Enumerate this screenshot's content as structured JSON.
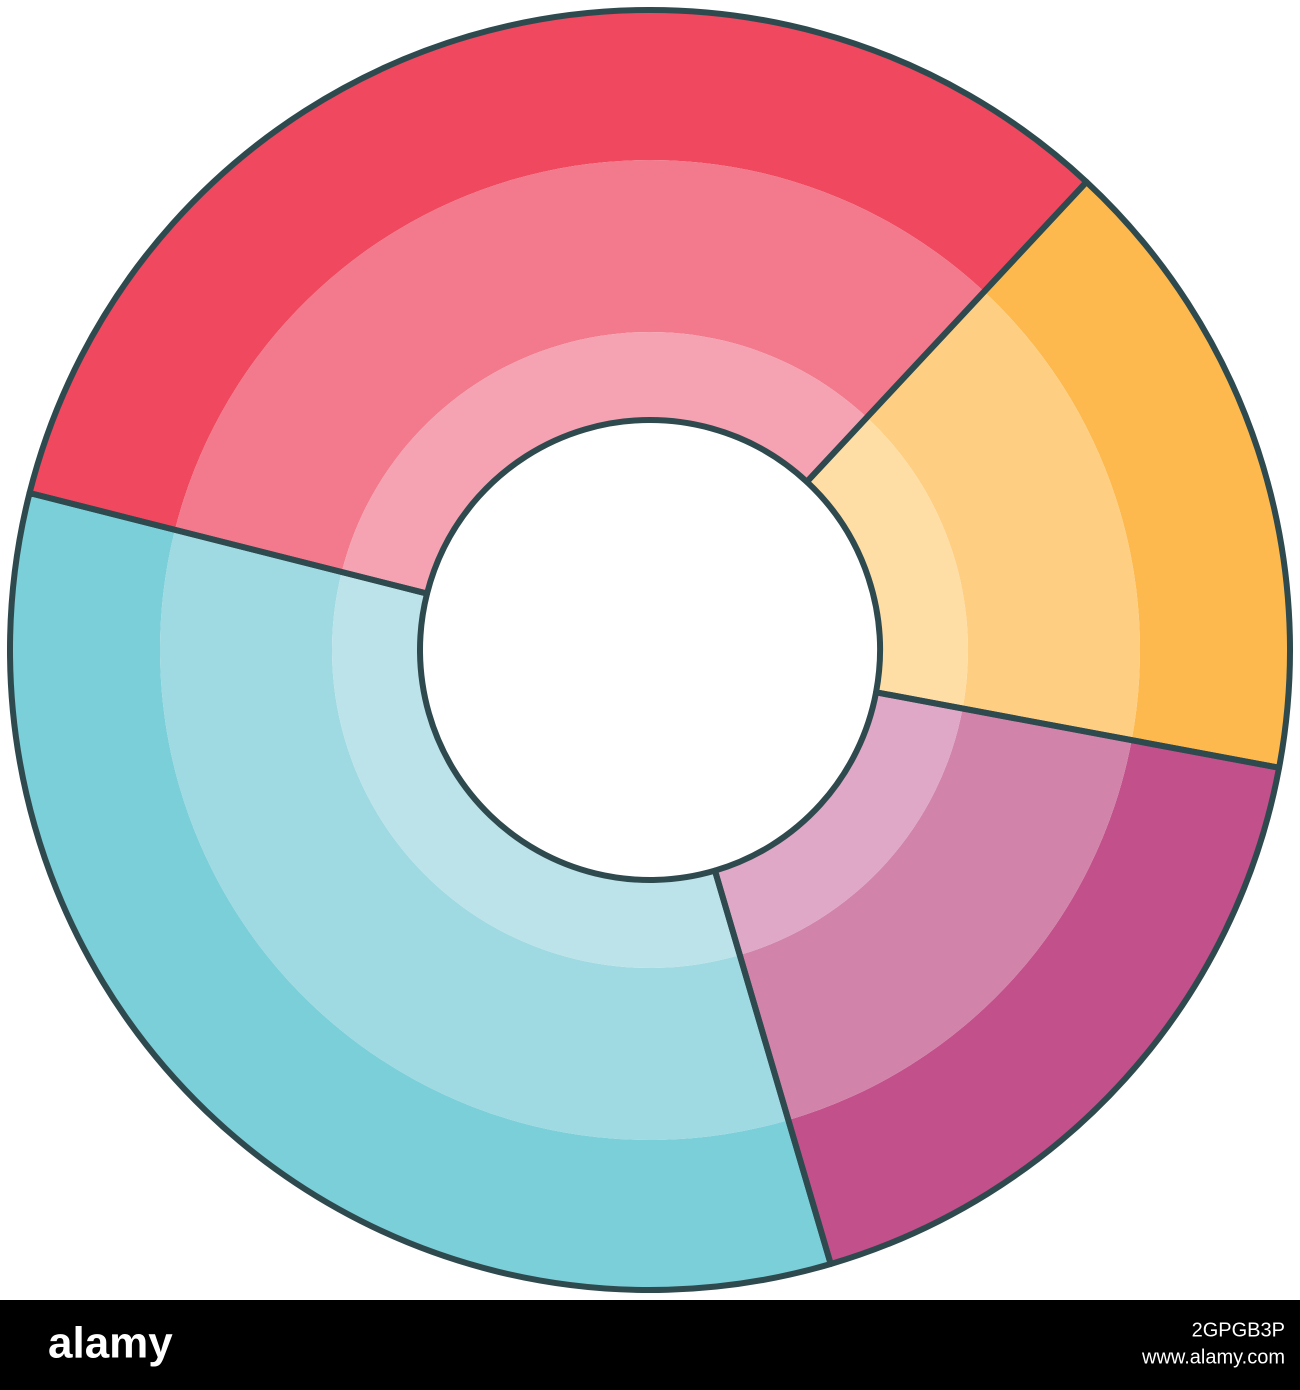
{
  "chart_data": {
    "type": "donut",
    "values": [
      16,
      17.5,
      33.5,
      33
    ],
    "colors": [
      [
        "#fdb94d",
        "#fecf83",
        "#ffdea6"
      ],
      [
        "#c2508a",
        "#d283aa",
        "#dfa8c6"
      ],
      [
        "#7bcfd9",
        "#9fd9e1",
        "#bce3ea"
      ],
      [
        "#f0485f",
        "#f27a8c",
        "#f5a3b2"
      ]
    ],
    "outline_color": "#2f4a4f"
  },
  "watermark": {
    "brand": "alamy",
    "image_id": "2GPGB3P",
    "url": "www.alamy.com"
  }
}
